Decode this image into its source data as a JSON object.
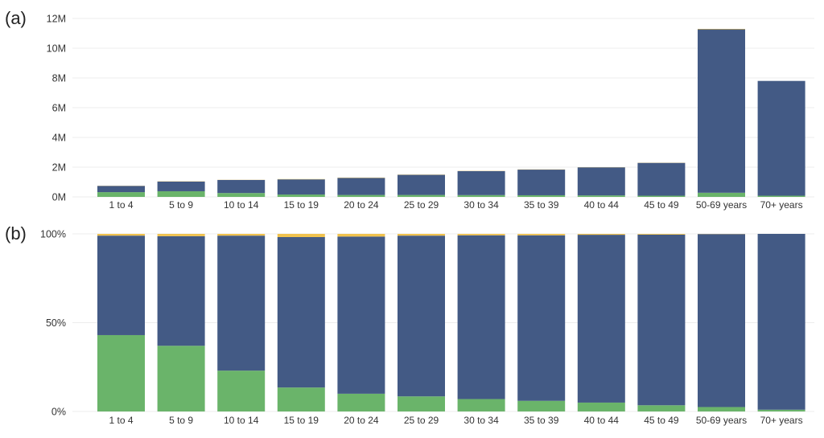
{
  "colors": {
    "green": "#6ab46a",
    "blue": "#435a85",
    "yellow": "#f0c24e",
    "grid": "#ececec"
  },
  "chart_data": [
    {
      "panel_label": "(a)",
      "type": "bar",
      "stacked": true,
      "title": "",
      "xlabel": "",
      "ylabel": "",
      "ylim": [
        0,
        12000000
      ],
      "yticks": [
        0,
        2000000,
        4000000,
        6000000,
        8000000,
        10000000,
        12000000
      ],
      "ytick_labels": [
        "0M",
        "2M",
        "4M",
        "6M",
        "8M",
        "10M",
        "12M"
      ],
      "grid": true,
      "categories": [
        "1 to 4",
        "5 to 9",
        "10 to 14",
        "15 to 19",
        "20 to 24",
        "25 to 29",
        "30 to 34",
        "35 to 39",
        "40 to 44",
        "45 to 49",
        "50-69 years",
        "70+ years"
      ],
      "series": [
        {
          "name": "green",
          "color": "#6ab46a",
          "values": [
            320000,
            380000,
            260000,
            160000,
            130000,
            130000,
            120000,
            110000,
            100000,
            80000,
            280000,
            80000
          ]
        },
        {
          "name": "blue",
          "color": "#435a85",
          "values": [
            420000,
            655000,
            880000,
            1020000,
            1150000,
            1355000,
            1617000,
            1725000,
            1890000,
            2210000,
            10990000,
            7720000
          ]
        },
        {
          "name": "yellow",
          "color": "#f0c24e",
          "values": [
            10000,
            15000,
            10000,
            20000,
            20000,
            15000,
            13000,
            15000,
            10000,
            10000,
            30000,
            0
          ]
        }
      ]
    },
    {
      "panel_label": "(b)",
      "type": "bar",
      "stacked": true,
      "normalized": true,
      "title": "",
      "xlabel": "",
      "ylabel": "",
      "ylim": [
        0,
        100
      ],
      "yticks": [
        0,
        50,
        100
      ],
      "ytick_labels": [
        "0%",
        "50%",
        "100%"
      ],
      "grid": true,
      "categories": [
        "1 to 4",
        "5 to 9",
        "10 to 14",
        "15 to 19",
        "20 to 24",
        "25 to 29",
        "30 to 34",
        "35 to 39",
        "40 to 44",
        "45 to 49",
        "50-69 years",
        "70+ years"
      ],
      "series": [
        {
          "name": "green",
          "color": "#6ab46a",
          "values": [
            43,
            37,
            23,
            13.5,
            10,
            8.5,
            7,
            6,
            5,
            3.5,
            2.5,
            1
          ]
        },
        {
          "name": "blue",
          "color": "#435a85",
          "values": [
            56,
            61.7,
            76,
            84.7,
            88.5,
            90.5,
            92.2,
            93.2,
            94.5,
            96.1,
            97.4,
            99
          ]
        },
        {
          "name": "yellow",
          "color": "#f0c24e",
          "values": [
            1,
            1.3,
            1,
            1.8,
            1.5,
            1,
            0.8,
            0.8,
            0.5,
            0.4,
            0.1,
            0
          ]
        }
      ]
    }
  ]
}
